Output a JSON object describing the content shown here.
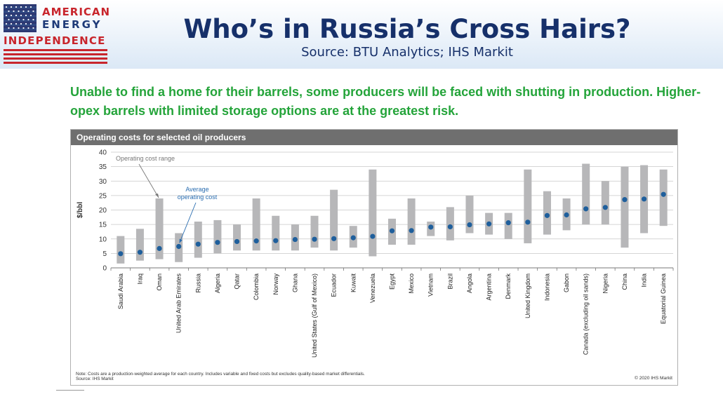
{
  "logo": {
    "line1": "AMERICAN",
    "line2": "ENERGY",
    "line3": "INDEPENDENCE"
  },
  "header": {
    "title": "Who’s in Russia’s Cross Hairs?",
    "subtitle": "Source: BTU Analytics; IHS Markit"
  },
  "lead_text": "Unable to find a home for their barrels, some producers will be faced with shutting in production. Higher-opex barrels with limited storage options are at the greatest risk.",
  "colors": {
    "title": "#16306a",
    "lead": "#24a43a",
    "range_bar": "#b7b7b9",
    "average_dot": "#1f5f9c",
    "annotation": "#2a6db0",
    "panel_header": "#6f6f6f"
  },
  "chart_data": {
    "type": "range_with_average",
    "title": "Operating costs for selected oil producers",
    "ylabel": "$/bbl",
    "xlabel": "",
    "ylim": [
      0,
      40
    ],
    "yticks": [
      0,
      5,
      10,
      15,
      20,
      25,
      30,
      35,
      40
    ],
    "grid": "horizontal",
    "categories": [
      "Saudi Arabia",
      "Iraq",
      "Oman",
      "United Arab Emirates",
      "Russia",
      "Algeria",
      "Qatar",
      "Colombia",
      "Norway",
      "Ghana",
      "United States (Gulf of Mexico)",
      "Ecuador",
      "Kuwait",
      "Venezuela",
      "Egypt",
      "Mexico",
      "Vietnam",
      "Brazil",
      "Angola",
      "Argentina",
      "Denmark",
      "United Kingdom",
      "Indonesia",
      "Gabon",
      "Canada (excluding oil sands)",
      "Nigeria",
      "China",
      "India",
      "Equatorial Guinea"
    ],
    "series": [
      {
        "name": "Operating cost range",
        "kind": "range",
        "low": [
          1.5,
          2.5,
          3,
          2,
          3.5,
          5,
          6,
          6,
          6,
          6,
          7,
          6,
          7,
          4,
          8,
          8,
          11,
          9.5,
          12,
          11.5,
          10,
          8.5,
          11.5,
          13,
          15,
          15,
          7,
          12,
          14.5
        ],
        "high": [
          11,
          13.5,
          24,
          12,
          16,
          16.5,
          15,
          24,
          18,
          15,
          18,
          27,
          14.5,
          34,
          17,
          24,
          16,
          21,
          25,
          19,
          19,
          34,
          26.5,
          24,
          36,
          30,
          35,
          35.5,
          34
        ]
      },
      {
        "name": "Average operating cost",
        "kind": "point",
        "values": [
          4.9,
          5.4,
          6.7,
          7.4,
          8.2,
          8.8,
          9.1,
          9.3,
          9.4,
          9.8,
          9.9,
          10.1,
          10.4,
          10.9,
          12.8,
          12.9,
          14.1,
          14.2,
          14.9,
          15.2,
          15.6,
          15.8,
          18.1,
          18.3,
          20.4,
          20.9,
          23.6,
          23.8,
          25.4
        ]
      }
    ],
    "annotations": [
      {
        "text": "Operating cost range",
        "points_to": "Oman"
      },
      {
        "text": "Average\noperating cost",
        "points_to": "United Arab Emirates"
      }
    ],
    "note": "Note: Costs are a production-weighted average for each country. Includes variable and fixed costs but excludes quality-based market differentials.",
    "source": "Source: IHS Markit",
    "copyright": "© 2020 IHS Markit"
  }
}
